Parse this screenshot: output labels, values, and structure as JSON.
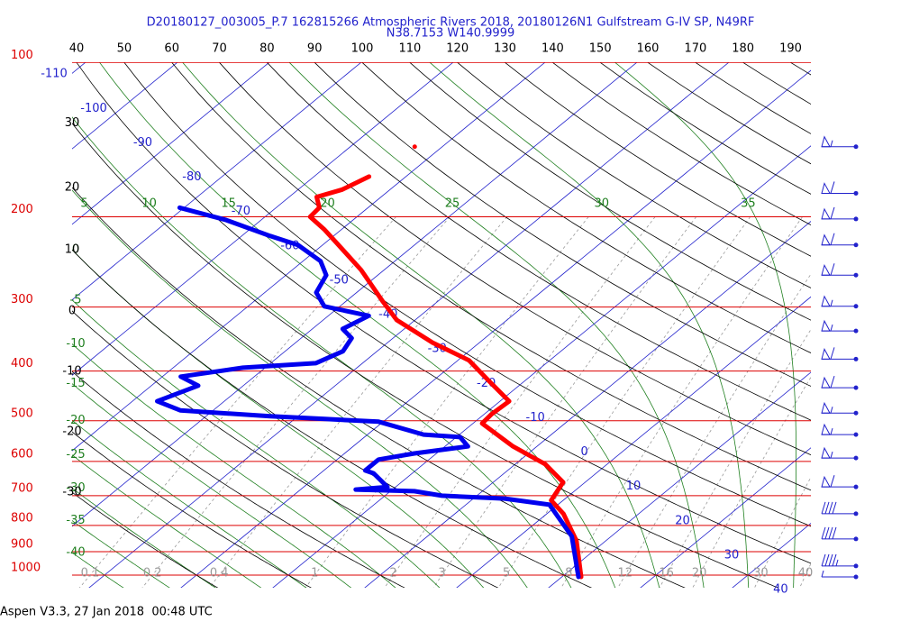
{
  "chart_data": {
    "type": "skewt",
    "title": "D20180127_003005_P.7 162815266 Atmospheric Rivers 2018, 20180126N1 Gulfstream G-IV SP, N49RF",
    "subtitle": "N38.7153 W140.9999",
    "footer": "Aspen V3.3, 27 Jan 2018  00:48 UTC",
    "isobars": {
      "color": "#dd0000",
      "values": [
        100,
        200,
        300,
        400,
        500,
        600,
        700,
        800,
        900,
        1000
      ]
    },
    "isotherms": {
      "color": "#2222cc",
      "values": [
        -110,
        -100,
        -90,
        -80,
        -70,
        -60,
        -50,
        -40,
        -30,
        -20,
        -10,
        0,
        10,
        20,
        30,
        40
      ]
    },
    "dry_adiabats": {
      "color": "#000000",
      "values": [
        -30,
        -20,
        -10,
        0,
        10,
        20,
        30,
        40,
        50,
        60,
        70,
        80,
        90,
        100,
        110,
        120,
        130,
        140,
        150,
        160,
        170,
        180,
        190
      ]
    },
    "moist_adiabats": {
      "color": "#1f7f1f",
      "values": [
        -40,
        -35,
        -30,
        -25,
        -20,
        -15,
        -10,
        -5,
        0,
        5,
        10,
        15,
        20,
        25,
        30,
        35
      ]
    },
    "mixing_ratios": {
      "color": "#999999",
      "values": [
        0.1,
        0.2,
        0.4,
        1,
        2,
        3,
        5,
        8,
        12,
        16,
        20,
        30,
        40
      ]
    },
    "temperature": {
      "color": "#ff0000",
      "pressure": [
        1008,
        857,
        759,
        715,
        659,
        608,
        561,
        506,
        486,
        458,
        422,
        381,
        352,
        318,
        293,
        254,
        226,
        212,
        200,
        192,
        183,
        177,
        167
      ],
      "values": [
        12.1,
        6.8,
        1.8,
        -1.3,
        -2.4,
        -6.7,
        -12.6,
        -19.0,
        -19.2,
        -19.0,
        -23.4,
        -28.8,
        -35.1,
        -42.0,
        -45.9,
        -52.5,
        -58.5,
        -61.8,
        -65.1,
        -65.3,
        -67.0,
        -65.2,
        -64.0
      ]
    },
    "dewpoint": {
      "color": "#0000ee",
      "pressure": [
        1008,
        840,
        729,
        709,
        700,
        686,
        681,
        673,
        633,
        625,
        595,
        579,
        561,
        538,
        532,
        502,
        496,
        490,
        477,
        458,
        427,
        410,
        394,
        386,
        366,
        345,
        331,
        312,
        299,
        281,
        260,
        244,
        227,
        218,
        203,
        192
      ],
      "values": [
        11.8,
        5.7,
        -0.9,
        -6.6,
        -13.8,
        -17.4,
        -24.0,
        -20.9,
        -24.2,
        -25.5,
        -25.5,
        -22.4,
        -17.5,
        -19.6,
        -23.9,
        -30.5,
        -36.7,
        -43.0,
        -53.6,
        -57.3,
        -54.9,
        -58.0,
        -52.4,
        -45.1,
        -43.7,
        -44.5,
        -46.7,
        -45.6,
        -51.7,
        -54.4,
        -55.6,
        -58.1,
        -62.7,
        -66.9,
        -73.8,
        -80.5
      ]
    },
    "isolated_point": {
      "color": "#ff0000",
      "pressure": [
        146
      ],
      "values": [
        -63.0
      ]
    },
    "winds": {
      "color": "#2222cc",
      "pressure": [
        146,
        180,
        202,
        227,
        260,
        299,
        334,
        379,
        431,
        483,
        532,
        591,
        673,
        759,
        850,
        960,
        1008
      ],
      "speed": [
        55,
        60,
        60,
        60,
        60,
        55,
        55,
        60,
        60,
        55,
        55,
        55,
        60,
        40,
        40,
        45,
        5
      ]
    }
  }
}
